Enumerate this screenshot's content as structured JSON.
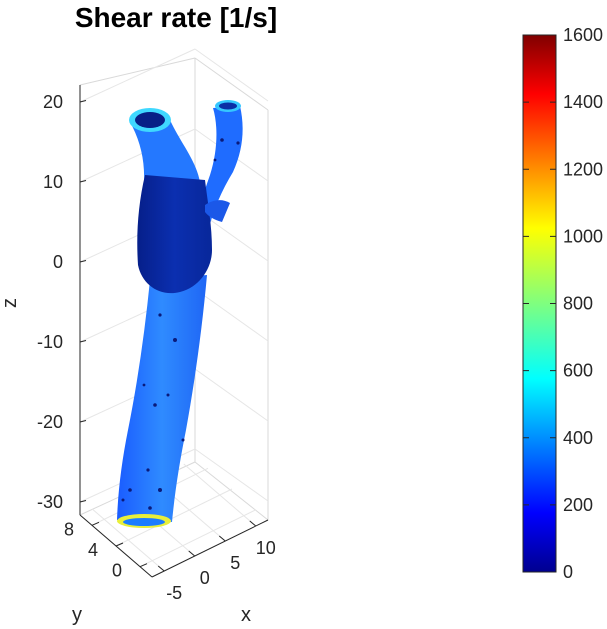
{
  "chart_data": {
    "type": "surface-3d",
    "title": "Shear rate [1/s]",
    "xlabel": "x",
    "ylabel": "y",
    "zlabel": "z",
    "x_ticks": [
      -5,
      0,
      5,
      10
    ],
    "y_ticks": [
      0,
      4,
      8
    ],
    "z_ticks": [
      -30,
      -20,
      -10,
      0,
      10,
      20
    ],
    "grid": "on",
    "colormap": "jet",
    "colorbar": {
      "location": "right",
      "limits": [
        0,
        1600
      ],
      "ticks": [
        0,
        200,
        400,
        600,
        800,
        1000,
        1200,
        1400,
        1600
      ]
    },
    "colors": {
      "low": "#00008f",
      "mid": "#00ff7f",
      "high": "#800000",
      "vessel_main": "#1e6cff",
      "vessel_dark": "#0a2a9c"
    }
  }
}
